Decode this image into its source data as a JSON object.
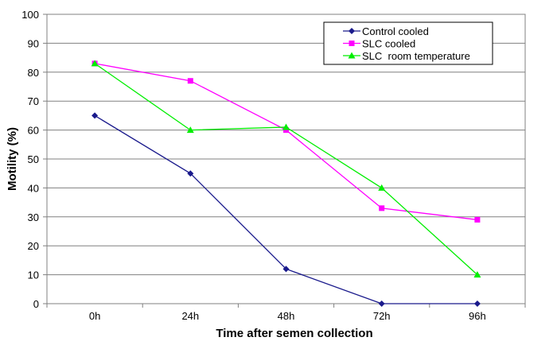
{
  "chart_data": {
    "type": "line",
    "categories": [
      "0h",
      "24h",
      "48h",
      "72h",
      "96h"
    ],
    "series": [
      {
        "name": "Control cooled",
        "values": [
          65,
          45,
          12,
          0,
          0
        ],
        "color": "#1a1a8c",
        "marker": "diamond"
      },
      {
        "name": "SLC cooled",
        "values": [
          83,
          77,
          60,
          33,
          29
        ],
        "color": "#ff00ff",
        "marker": "square"
      },
      {
        "name": "SLC  room temperature",
        "values": [
          83,
          60,
          61,
          40,
          10
        ],
        "color": "#00ee00",
        "marker": "triangle"
      }
    ],
    "xlabel": "Time after semen collection",
    "ylabel": "Motility (%)",
    "ylim": [
      0,
      100
    ],
    "yticks": [
      "0",
      "10",
      "20",
      "30",
      "40",
      "50",
      "60",
      "70",
      "80",
      "90",
      "100"
    ],
    "grid": true,
    "legend_position": "top-right"
  }
}
